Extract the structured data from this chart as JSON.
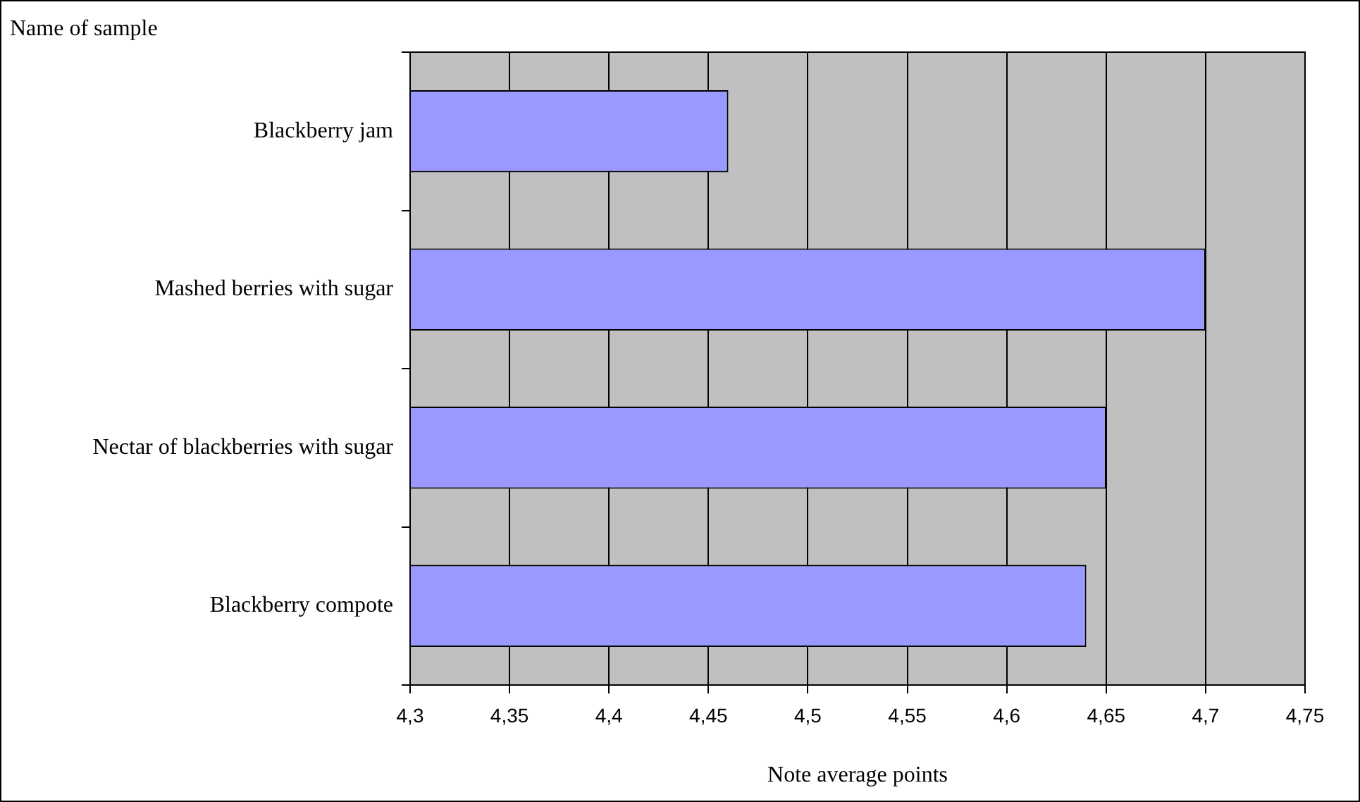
{
  "chart_data": {
    "type": "bar",
    "orientation": "horizontal",
    "xlabel": "Note average points",
    "ylabel": "Name of sample",
    "categories": [
      "Blackberry jam",
      "Mashed berries with sugar",
      "Nectar of blackberries with sugar",
      "Blackberry compote"
    ],
    "values": [
      4.46,
      4.7,
      4.65,
      4.64
    ],
    "color": "#9999ff",
    "xlim": [
      4.3,
      4.75
    ],
    "xticks": [
      {
        "value": 4.3,
        "label": "4,3"
      },
      {
        "value": 4.35,
        "label": "4,35"
      },
      {
        "value": 4.4,
        "label": "4,4"
      },
      {
        "value": 4.45,
        "label": "4,45"
      },
      {
        "value": 4.5,
        "label": "4,5"
      },
      {
        "value": 4.55,
        "label": "4,55"
      },
      {
        "value": 4.6,
        "label": "4,6"
      },
      {
        "value": 4.65,
        "label": "4,65"
      },
      {
        "value": 4.7,
        "label": "4,7"
      },
      {
        "value": 4.75,
        "label": "4,75"
      }
    ],
    "grid": "x"
  }
}
